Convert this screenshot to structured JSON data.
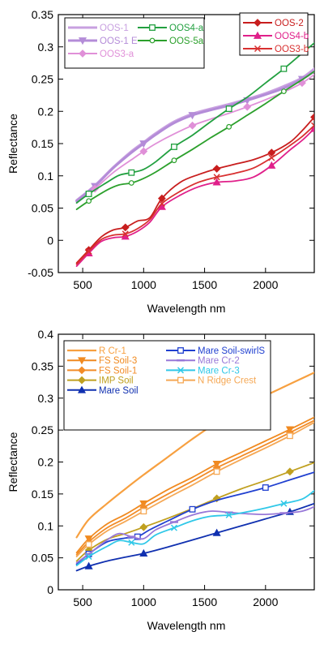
{
  "chart_data": [
    {
      "type": "line",
      "xlabel": "Wavelength nm",
      "ylabel": "Reflectance",
      "xlim": [
        300,
        2400
      ],
      "ylim": [
        -0.05,
        0.35
      ],
      "xticks": [
        500,
        1000,
        1500,
        2000
      ],
      "yticks": [
        -0.05,
        0,
        0.05,
        0.1,
        0.15,
        0.2,
        0.25,
        0.3,
        0.35
      ],
      "ytick_labels": [
        "-0.05",
        "0",
        "0.05",
        "0.1",
        "0.15",
        "0.2",
        "0.25",
        "0.3",
        "0.35"
      ],
      "grid": false,
      "legends": [
        {
          "placement": "top-left",
          "columns": 2,
          "entries": [
            "OOS-1",
            "OOS4-a",
            "OOS-1 E",
            "OOS-5a",
            "OOS3-a"
          ]
        },
        {
          "placement": "top-right",
          "columns": 1,
          "entries": [
            "OOS-2",
            "OOS4-b",
            "OOS3-b"
          ]
        }
      ],
      "series": [
        {
          "name": "OOS-1",
          "color": "#c8a0e0",
          "marker": "none",
          "width": 3,
          "x": [
            450,
            600,
            750,
            900,
            1000,
            1100,
            1250,
            1400,
            1550,
            1700,
            1850,
            2000,
            2150,
            2300,
            2400
          ],
          "y": [
            0.062,
            0.085,
            0.113,
            0.138,
            0.152,
            0.166,
            0.184,
            0.196,
            0.204,
            0.211,
            0.219,
            0.228,
            0.239,
            0.252,
            0.266
          ]
        },
        {
          "name": "OOS-1 E",
          "color": "#b48cd8",
          "marker": "triangle-down",
          "width": 3,
          "x": [
            450,
            600,
            750,
            900,
            1000,
            1100,
            1250,
            1400,
            1550,
            1700,
            1850,
            2000,
            2150,
            2300,
            2400
          ],
          "y": [
            0.061,
            0.084,
            0.112,
            0.136,
            0.15,
            0.164,
            0.182,
            0.194,
            0.202,
            0.209,
            0.217,
            0.226,
            0.236,
            0.25,
            0.262
          ]
        },
        {
          "name": "OOS3-a",
          "color": "#e090d8",
          "marker": "diamond",
          "x": [
            450,
            600,
            750,
            900,
            1000,
            1100,
            1250,
            1400,
            1550,
            1700,
            1850,
            2000,
            2150,
            2300,
            2400
          ],
          "y": [
            0.058,
            0.08,
            0.105,
            0.125,
            0.138,
            0.15,
            0.165,
            0.178,
            0.188,
            0.197,
            0.207,
            0.218,
            0.23,
            0.244,
            0.257
          ]
        },
        {
          "name": "OOS4-a",
          "color": "#22a040",
          "marker": "square-open",
          "x": [
            450,
            550,
            700,
            800,
            900,
            1000,
            1100,
            1250,
            1400,
            1550,
            1700,
            1850,
            2000,
            2150,
            2300,
            2400
          ],
          "y": [
            0.058,
            0.072,
            0.09,
            0.101,
            0.105,
            0.11,
            0.122,
            0.145,
            0.163,
            0.184,
            0.204,
            0.222,
            0.244,
            0.266,
            0.29,
            0.306
          ]
        },
        {
          "name": "OOS-5a",
          "color": "#2ca02c",
          "marker": "circle",
          "x": [
            450,
            550,
            700,
            800,
            900,
            1000,
            1100,
            1250,
            1400,
            1550,
            1700,
            1850,
            2000,
            2150,
            2300,
            2400
          ],
          "y": [
            0.048,
            0.061,
            0.078,
            0.086,
            0.089,
            0.096,
            0.106,
            0.124,
            0.141,
            0.159,
            0.176,
            0.194,
            0.212,
            0.231,
            0.249,
            0.262
          ]
        },
        {
          "name": "OOS-2",
          "color": "#c81e1e",
          "marker": "diamond",
          "x": [
            450,
            550,
            650,
            750,
            850,
            950,
            1050,
            1150,
            1300,
            1450,
            1600,
            1750,
            1900,
            2050,
            2200,
            2300,
            2400
          ],
          "y": [
            -0.035,
            -0.015,
            0.005,
            0.016,
            0.02,
            0.03,
            0.035,
            0.065,
            0.09,
            0.102,
            0.111,
            0.118,
            0.125,
            0.136,
            0.152,
            0.17,
            0.191
          ]
        },
        {
          "name": "OOS4-b",
          "color": "#e0208a",
          "marker": "triangle-up",
          "x": [
            450,
            550,
            650,
            750,
            850,
            950,
            1050,
            1150,
            1300,
            1450,
            1600,
            1750,
            1900,
            2050,
            2200,
            2300,
            2400
          ],
          "y": [
            -0.04,
            -0.02,
            -0.002,
            0.004,
            0.006,
            0.014,
            0.028,
            0.052,
            0.07,
            0.083,
            0.09,
            0.092,
            0.098,
            0.116,
            0.14,
            0.155,
            0.173
          ]
        },
        {
          "name": "OOS3-b",
          "color": "#d83030",
          "marker": "x",
          "x": [
            450,
            550,
            650,
            750,
            850,
            950,
            1050,
            1150,
            1300,
            1450,
            1600,
            1750,
            1900,
            2050,
            2200,
            2300,
            2400
          ],
          "y": [
            -0.037,
            -0.017,
            0.001,
            0.008,
            0.01,
            0.018,
            0.032,
            0.057,
            0.076,
            0.09,
            0.098,
            0.104,
            0.112,
            0.128,
            0.147,
            0.161,
            0.178
          ]
        }
      ]
    },
    {
      "type": "line",
      "xlabel": "Wavelength nm",
      "ylabel": "Reflectance",
      "xlim": [
        300,
        2400
      ],
      "ylim": [
        0,
        0.4
      ],
      "xticks": [
        500,
        1000,
        1500,
        2000
      ],
      "yticks": [
        0,
        0.05,
        0.1,
        0.15,
        0.2,
        0.25,
        0.3,
        0.35,
        0.4
      ],
      "ytick_labels": [
        "0",
        "0.05",
        "0.1",
        "0.15",
        "0.2",
        "0.25",
        "0.3",
        "0.35",
        "0.4"
      ],
      "grid": false,
      "legends": [
        {
          "placement": "top-left",
          "columns": 2,
          "entries": [
            "R Cr-1",
            "Mare Soil-swirlS",
            "FS Soil-3",
            "Mare Cr-2",
            "FS Soil-1",
            "Mare Cr-3",
            "IMP Soil",
            "N Ridge Crest",
            "Mare Soil"
          ]
        }
      ],
      "series": [
        {
          "name": "R Cr-1",
          "color": "#f7a040",
          "marker": "none",
          "width": 2.2,
          "x": [
            450,
            550,
            700,
            850,
            1000,
            1200,
            1400,
            1600,
            1800,
            2000,
            2200,
            2400
          ],
          "y": [
            0.082,
            0.11,
            0.135,
            0.158,
            0.18,
            0.208,
            0.236,
            0.262,
            0.285,
            0.304,
            0.322,
            0.34
          ]
        },
        {
          "name": "FS Soil-3",
          "color": "#f08a20",
          "marker": "triangle-down",
          "x": [
            450,
            550,
            700,
            850,
            1000,
            1200,
            1400,
            1600,
            1800,
            2000,
            2200,
            2400
          ],
          "y": [
            0.058,
            0.08,
            0.103,
            0.118,
            0.135,
            0.157,
            0.176,
            0.197,
            0.215,
            0.233,
            0.251,
            0.27
          ]
        },
        {
          "name": "FS Soil-1",
          "color": "#f28c28",
          "marker": "diamond",
          "x": [
            450,
            550,
            700,
            850,
            1000,
            1200,
            1400,
            1600,
            1800,
            2000,
            2200,
            2400
          ],
          "y": [
            0.055,
            0.075,
            0.097,
            0.112,
            0.129,
            0.15,
            0.17,
            0.191,
            0.209,
            0.227,
            0.246,
            0.265
          ]
        },
        {
          "name": "IMP Soil",
          "color": "#c0a020",
          "marker": "diamond",
          "x": [
            450,
            550,
            700,
            850,
            1000,
            1200,
            1400,
            1600,
            1800,
            2000,
            2200,
            2400
          ],
          "y": [
            0.045,
            0.062,
            0.079,
            0.088,
            0.098,
            0.112,
            0.127,
            0.143,
            0.158,
            0.171,
            0.185,
            0.199
          ]
        },
        {
          "name": "Mare Soil",
          "color": "#1030b0",
          "marker": "triangle-up",
          "x": [
            450,
            550,
            700,
            850,
            1000,
            1200,
            1400,
            1600,
            1800,
            2000,
            2200,
            2400
          ],
          "y": [
            0.03,
            0.037,
            0.045,
            0.051,
            0.057,
            0.067,
            0.078,
            0.089,
            0.1,
            0.111,
            0.122,
            0.135
          ]
        },
        {
          "name": "Mare Soil-swirlS",
          "color": "#2040d0",
          "marker": "square-open",
          "x": [
            450,
            550,
            700,
            850,
            950,
            1050,
            1200,
            1400,
            1600,
            1800,
            2000,
            2200,
            2400
          ],
          "y": [
            0.04,
            0.056,
            0.075,
            0.081,
            0.083,
            0.094,
            0.108,
            0.126,
            0.14,
            0.15,
            0.16,
            0.172,
            0.184
          ]
        },
        {
          "name": "Mare Cr-2",
          "color": "#9878d8",
          "marker": "dash",
          "x": [
            450,
            550,
            700,
            800,
            900,
            1000,
            1100,
            1250,
            1400,
            1550,
            1700,
            1850,
            2000,
            2150,
            2300,
            2400
          ],
          "y": [
            0.042,
            0.056,
            0.078,
            0.088,
            0.083,
            0.08,
            0.094,
            0.106,
            0.117,
            0.123,
            0.121,
            0.119,
            0.118,
            0.12,
            0.123,
            0.13
          ]
        },
        {
          "name": "Mare Cr-3",
          "color": "#30c8e8",
          "marker": "x",
          "x": [
            450,
            550,
            700,
            800,
            900,
            1000,
            1100,
            1250,
            1400,
            1550,
            1700,
            1850,
            2000,
            2150,
            2300,
            2400
          ],
          "y": [
            0.038,
            0.052,
            0.068,
            0.077,
            0.074,
            0.072,
            0.086,
            0.097,
            0.108,
            0.115,
            0.117,
            0.122,
            0.128,
            0.135,
            0.142,
            0.155
          ]
        },
        {
          "name": "N Ridge Crest",
          "color": "#f5a855",
          "marker": "square-open",
          "x": [
            450,
            550,
            700,
            850,
            1000,
            1200,
            1400,
            1600,
            1800,
            2000,
            2200,
            2400
          ],
          "y": [
            0.052,
            0.071,
            0.092,
            0.107,
            0.123,
            0.144,
            0.164,
            0.185,
            0.204,
            0.222,
            0.241,
            0.262
          ]
        }
      ]
    }
  ]
}
